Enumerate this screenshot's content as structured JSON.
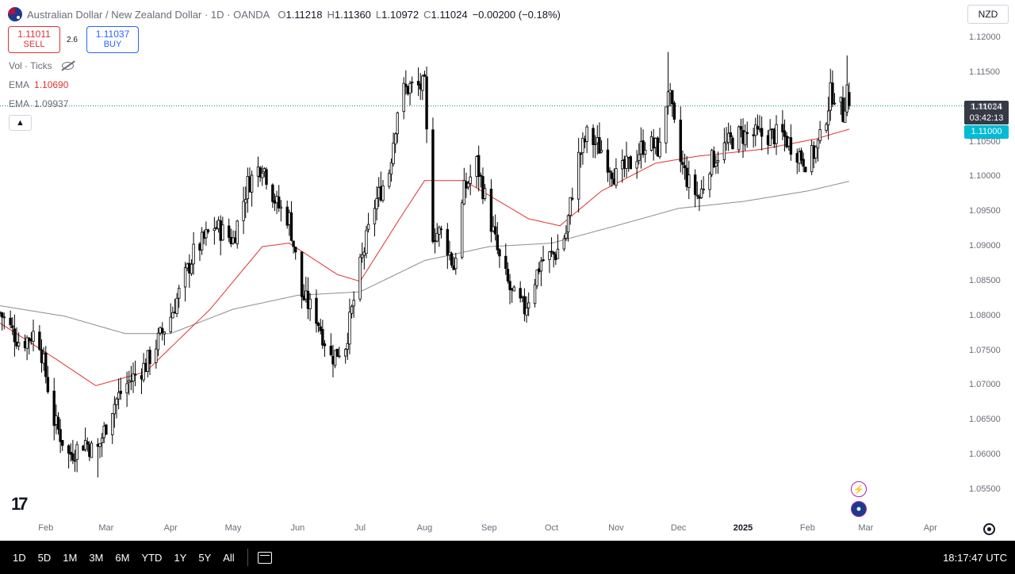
{
  "header": {
    "title": "Australian Dollar / New Zealand Dollar · 1D · OANDA",
    "ohlc": [
      {
        "k": "O",
        "v": "1.11218"
      },
      {
        "k": "H",
        "v": "1.11360"
      },
      {
        "k": "L",
        "v": "1.10972"
      },
      {
        "k": "C",
        "v": "1.11024"
      }
    ],
    "change": "−0.00200 (−0.18%)"
  },
  "trade": {
    "sell_price": "1.11011",
    "sell_label": "SELL",
    "spread": "2.6",
    "buy_price": "1.11037",
    "buy_label": "BUY"
  },
  "indicators": {
    "vol_label": "Vol · Ticks",
    "ema1_label": "EMA",
    "ema1_value": "1.10690",
    "ema2_label": "EMA",
    "ema2_value": "1.09937"
  },
  "currency_select": "NZD",
  "price_scale": {
    "last_price": "1.11024",
    "countdown": "03:42:13",
    "line_price": "1.11000"
  },
  "bottom_bar": {
    "ranges": [
      "1D",
      "5D",
      "1M",
      "3M",
      "6M",
      "YTD",
      "1Y",
      "5Y",
      "All"
    ],
    "clock": "18:17:47 UTC"
  },
  "colors": {
    "up_candle": "#ffffff",
    "down_candle": "#000000",
    "ema_fast": "#e03131",
    "ema_slow": "#8c8c8c",
    "last_price_line": "#00897b"
  },
  "icons": [
    "search-icon",
    "eye-off-icon",
    "chevron-up-icon",
    "flash-icon",
    "flag-icon",
    "settings-icon",
    "calendar-range-icon"
  ],
  "chart_data": {
    "type": "candlestick",
    "y_ticks": [
      "1.12000",
      "1.11500",
      "1.11000",
      "1.10500",
      "1.10000",
      "1.09500",
      "1.09000",
      "1.08500",
      "1.08000",
      "1.07500",
      "1.07000",
      "1.06500",
      "1.06000",
      "1.05500"
    ],
    "x_ticks": [
      "Feb",
      "Mar",
      "Apr",
      "May",
      "Jun",
      "Jul",
      "Aug",
      "Sep",
      "Oct",
      "Nov",
      "Dec",
      "2025",
      "Feb",
      "Mar",
      "Apr"
    ],
    "ylim": [
      1.051,
      1.1235
    ],
    "grid": false,
    "close_anchors": [
      [
        "2024-01-10",
        1.0805
      ],
      [
        "2024-01-20",
        1.076
      ],
      [
        "2024-01-28",
        1.078
      ],
      [
        "2024-02-05",
        1.065
      ],
      [
        "2024-02-12",
        1.06
      ],
      [
        "2024-02-20",
        1.062
      ],
      [
        "2024-02-25",
        1.06
      ],
      [
        "2024-03-04",
        1.067
      ],
      [
        "2024-03-10",
        1.07
      ],
      [
        "2024-03-20",
        1.073
      ],
      [
        "2024-04-01",
        1.08
      ],
      [
        "2024-04-12",
        1.089
      ],
      [
        "2024-04-22",
        1.093
      ],
      [
        "2024-05-01",
        1.091
      ],
      [
        "2024-05-08",
        1.099
      ],
      [
        "2024-05-15",
        1.102
      ],
      [
        "2024-05-22",
        1.096
      ],
      [
        "2024-05-28",
        1.094
      ],
      [
        "2024-06-03",
        1.083
      ],
      [
        "2024-06-10",
        1.08
      ],
      [
        "2024-06-17",
        1.074
      ],
      [
        "2024-06-24",
        1.076
      ],
      [
        "2024-07-01",
        1.087
      ],
      [
        "2024-07-08",
        1.096
      ],
      [
        "2024-07-15",
        1.101
      ],
      [
        "2024-07-20",
        1.112
      ],
      [
        "2024-07-25",
        1.113
      ],
      [
        "2024-08-01",
        1.113
      ],
      [
        "2024-08-04",
        1.092
      ],
      [
        "2024-08-10",
        1.092
      ],
      [
        "2024-08-15",
        1.087
      ],
      [
        "2024-08-20",
        1.098
      ],
      [
        "2024-08-26",
        1.102
      ],
      [
        "2024-08-31",
        1.096
      ],
      [
        "2024-09-06",
        1.088
      ],
      [
        "2024-09-12",
        1.083
      ],
      [
        "2024-09-18",
        1.081
      ],
      [
        "2024-09-26",
        1.088
      ],
      [
        "2024-10-03",
        1.089
      ],
      [
        "2024-10-08",
        1.092
      ],
      [
        "2024-10-13",
        1.102
      ],
      [
        "2024-10-18",
        1.106
      ],
      [
        "2024-10-25",
        1.104
      ],
      [
        "2024-11-01",
        1.1
      ],
      [
        "2024-11-08",
        1.102
      ],
      [
        "2024-11-15",
        1.105
      ],
      [
        "2024-11-22",
        1.104
      ],
      [
        "2024-11-26",
        1.113
      ],
      [
        "2024-12-01",
        1.103
      ],
      [
        "2024-12-06",
        1.099
      ],
      [
        "2024-12-11",
        1.097
      ],
      [
        "2024-12-16",
        1.102
      ],
      [
        "2024-12-22",
        1.104
      ],
      [
        "2024-12-29",
        1.106
      ],
      [
        "2025-01-05",
        1.106
      ],
      [
        "2025-01-12",
        1.106
      ],
      [
        "2025-01-20",
        1.106
      ],
      [
        "2025-01-26",
        1.104
      ],
      [
        "2025-02-01",
        1.102
      ],
      [
        "2025-02-05",
        1.104
      ],
      [
        "2025-02-08",
        1.106
      ],
      [
        "2025-02-12",
        1.112
      ],
      [
        "2025-02-15",
        1.112
      ],
      [
        "2025-02-18",
        1.109
      ],
      [
        "2025-02-20",
        1.113
      ],
      [
        "2025-02-21",
        1.1102
      ]
    ],
    "ema_fast_anchors": [
      [
        "2024-01-10",
        1.079
      ],
      [
        "2024-02-05",
        1.074
      ],
      [
        "2024-02-25",
        1.07
      ],
      [
        "2024-03-20",
        1.072
      ],
      [
        "2024-04-20",
        1.081
      ],
      [
        "2024-05-15",
        1.09
      ],
      [
        "2024-05-28",
        1.0905
      ],
      [
        "2024-06-20",
        1.086
      ],
      [
        "2024-07-01",
        1.085
      ],
      [
        "2024-07-20",
        1.094
      ],
      [
        "2024-08-01",
        1.0995
      ],
      [
        "2024-08-20",
        1.0995
      ],
      [
        "2024-09-20",
        1.094
      ],
      [
        "2024-10-05",
        1.093
      ],
      [
        "2024-10-25",
        1.098
      ],
      [
        "2024-11-20",
        1.102
      ],
      [
        "2024-12-10",
        1.103
      ],
      [
        "2025-01-10",
        1.104
      ],
      [
        "2025-02-05",
        1.1055
      ],
      [
        "2025-02-21",
        1.1069
      ]
    ],
    "ema_slow_anchors": [
      [
        "2024-01-10",
        1.0815
      ],
      [
        "2024-02-10",
        1.08
      ],
      [
        "2024-03-10",
        1.0775
      ],
      [
        "2024-04-01",
        1.0775
      ],
      [
        "2024-05-01",
        1.081
      ],
      [
        "2024-06-01",
        1.083
      ],
      [
        "2024-07-01",
        1.0835
      ],
      [
        "2024-08-01",
        1.088
      ],
      [
        "2024-09-01",
        1.09
      ],
      [
        "2024-10-01",
        1.0905
      ],
      [
        "2024-11-01",
        1.093
      ],
      [
        "2024-12-01",
        1.0955
      ],
      [
        "2025-01-01",
        1.0965
      ],
      [
        "2025-02-01",
        1.098
      ],
      [
        "2025-02-21",
        1.0994
      ]
    ],
    "high_low_markers": {
      "high": 1.118,
      "low": 1.0568
    }
  }
}
